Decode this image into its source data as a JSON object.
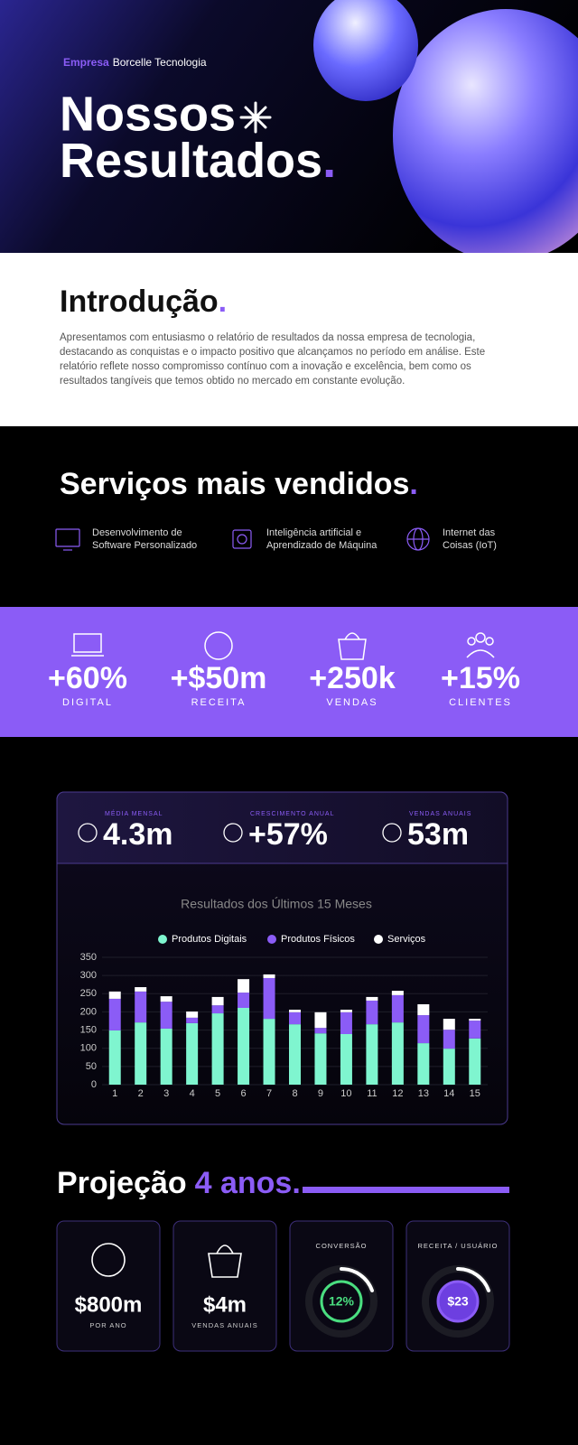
{
  "header": {
    "brand_prefix": "Empresa",
    "brand": "Borcelle Tecnologia",
    "title_line1": "Nossos",
    "title_line2": "Resultados",
    "accent": "."
  },
  "intro": {
    "title": "Introdução",
    "body": "Apresentamos com entusiasmo o relatório de resultados da nossa empresa de tecnologia, destacando as conquistas e o impacto positivo que alcançamos no período em análise. Este relatório reflete nosso compromisso contínuo com a inovação e excelência, bem como os resultados tangíveis que temos obtido no mercado em constante evolução."
  },
  "services": {
    "title": "Serviços mais vendidos",
    "items": [
      {
        "lines": [
          "Desenvolvimento de",
          "Software Personalizado"
        ]
      },
      {
        "lines": [
          "Inteligência artificial e",
          "Aprendizado de Máquina"
        ]
      },
      {
        "lines": [
          "Internet das",
          "Coisas (IoT)"
        ]
      }
    ]
  },
  "stats": [
    {
      "value": "+60%",
      "label": "DIGITAL"
    },
    {
      "value": "+$50m",
      "label": "RECEITA"
    },
    {
      "value": "+250k",
      "label": "VENDAS"
    },
    {
      "value": "+15%",
      "label": "CLIENTES"
    }
  ],
  "kpis": [
    {
      "label": "MÉDIA MENSAL",
      "value": "4.3m"
    },
    {
      "label": "CRESCIMENTO ANUAL",
      "value": "+57%"
    },
    {
      "label": "VENDAS ANUAIS",
      "value": "53m"
    }
  ],
  "chart_data": {
    "type": "stacked_bar",
    "title": "Resultados dos Últimos 15 Meses",
    "categories": [
      "1",
      "2",
      "3",
      "4",
      "5",
      "6",
      "7",
      "8",
      "9",
      "10",
      "11",
      "12",
      "13",
      "14",
      "15"
    ],
    "series": [
      {
        "name": "Produtos Digitais",
        "color": "#7ff5cf",
        "values": [
          149,
          171,
          154,
          169,
          196,
          211,
          181,
          166,
          141,
          139,
          166,
          171,
          114,
          99,
          127
        ]
      },
      {
        "name": "Produtos Físicos",
        "color": "#8b5cf6",
        "values": [
          87,
          85,
          74,
          15,
          22,
          42,
          112,
          33,
          15,
          60,
          65,
          75,
          77,
          52,
          49
        ]
      },
      {
        "name": "Serviços",
        "color": "#ffffff",
        "values": [
          20,
          12,
          15,
          17,
          23,
          37,
          10,
          7,
          43,
          7,
          10,
          12,
          30,
          30,
          5
        ]
      }
    ],
    "ylim": [
      0,
      350
    ],
    "yticks": [
      0,
      50,
      100,
      150,
      200,
      250,
      300,
      350
    ],
    "grid": true,
    "legend": "top"
  },
  "projection": {
    "title": "Projeção",
    "highlight": "4 anos.",
    "cards": [
      {
        "value": "$800m",
        "label": "POR ANO"
      },
      {
        "value": "$4m",
        "label": "VENDAS ANUAIS"
      },
      {
        "label": "CONVERSÃO",
        "value": "12%"
      },
      {
        "label": "RECEITA / USUÁRIO",
        "value": "$23"
      }
    ]
  }
}
